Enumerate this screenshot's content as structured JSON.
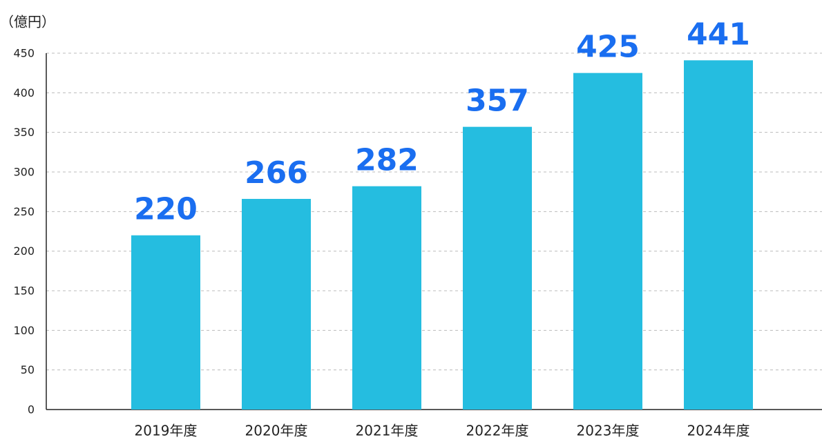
{
  "chart_data": {
    "type": "bar",
    "y_label": "（億円）",
    "categories": [
      "2019年度",
      "2020年度",
      "2021年度",
      "2022年度",
      "2023年度",
      "2024年度"
    ],
    "values": [
      220,
      266,
      282,
      357,
      425,
      441
    ],
    "color": "#25bde0",
    "label_color": "#1a6ef0",
    "ylim": [
      0,
      450
    ],
    "yticks": [
      0,
      50,
      100,
      150,
      200,
      250,
      300,
      350,
      400,
      450
    ],
    "grid": true
  }
}
